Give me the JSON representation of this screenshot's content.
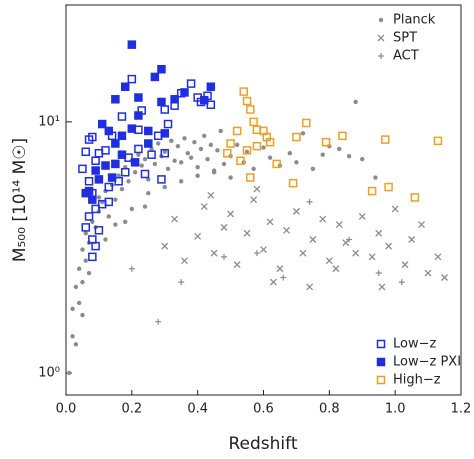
{
  "chart_data": {
    "type": "scatter",
    "xlabel": "Redshift",
    "ylabel": "M₅₀₀  [10¹⁴ M☉]",
    "xlim": [
      0,
      1.2
    ],
    "ylim": [
      0.817,
      29.2
    ],
    "log_y": true,
    "xticks": [
      {
        "value": 0,
        "label": "0.0"
      },
      0.2,
      0.4,
      0.6,
      0.8,
      {
        "value": 1,
        "label": "1.0"
      },
      1.2
    ],
    "yticks": [
      {
        "value": 1,
        "label": "10⁰"
      },
      {
        "value": 10,
        "label": "10¹"
      }
    ],
    "legends": [
      {
        "loc": "upper right",
        "series": [
          0,
          1,
          2
        ]
      },
      {
        "loc": "lower right",
        "series": [
          3,
          4,
          5
        ]
      }
    ],
    "series": [
      {
        "name": "Planck",
        "color": "#8c8c8c",
        "marker": "circle",
        "x": [
          0.01,
          0.02,
          0.02,
          0.03,
          0.03,
          0.04,
          0.04,
          0.05,
          0.05,
          0.06,
          0.06,
          0.07,
          0.08,
          0.09,
          0.1,
          0.1,
          0.11,
          0.12,
          0.13,
          0.14,
          0.15,
          0.16,
          0.17,
          0.18,
          0.19,
          0.2,
          0.21,
          0.22,
          0.23,
          0.24,
          0.25,
          0.26,
          0.27,
          0.28,
          0.29,
          0.3,
          0.31,
          0.32,
          0.33,
          0.34,
          0.35,
          0.36,
          0.37,
          0.38,
          0.39,
          0.4,
          0.41,
          0.42,
          0.43,
          0.44,
          0.45,
          0.46,
          0.47,
          0.48,
          0.5,
          0.52,
          0.54,
          0.55,
          0.57,
          0.6,
          0.62,
          0.65,
          0.68,
          0.7,
          0.72,
          0.75,
          0.78,
          0.8,
          0.83,
          0.86,
          0.88,
          0.9,
          0.94,
          0.15,
          0.2,
          0.25,
          0.3,
          0.35,
          0.4,
          0.45,
          0.5,
          0.12,
          0.18,
          0.24,
          0.05,
          0.07
        ],
        "values": [
          1.0,
          1.4,
          1.8,
          1.3,
          2.2,
          1.9,
          2.6,
          2.3,
          3.1,
          2.8,
          3.6,
          3.3,
          4.0,
          3.8,
          4.4,
          5.0,
          4.8,
          5.3,
          4.2,
          5.6,
          4.9,
          6.1,
          5.4,
          6.6,
          5.8,
          7.0,
          6.3,
          7.4,
          6.7,
          7.1,
          5.9,
          7.8,
          6.8,
          8.2,
          7.3,
          7.6,
          6.5,
          8.4,
          7.0,
          8.0,
          6.9,
          8.6,
          7.5,
          7.2,
          8.3,
          6.6,
          7.8,
          8.8,
          7.1,
          8.1,
          6.4,
          7.7,
          9.2,
          6.8,
          7.3,
          8.1,
          6.9,
          7.6,
          6.5,
          7.9,
          7.2,
          6.7,
          7.5,
          6.9,
          9.0,
          6.5,
          7.4,
          8.0,
          7.8,
          7.3,
          12.0,
          7.1,
          6.0,
          3.9,
          4.5,
          5.2,
          5.5,
          5.8,
          6.1,
          6.3,
          6.0,
          3.4,
          4.0,
          4.6,
          1.7,
          2.5
        ]
      },
      {
        "name": "SPT",
        "color": "#8c8c8c",
        "marker": "x",
        "x": [
          0.3,
          0.33,
          0.36,
          0.4,
          0.42,
          0.45,
          0.48,
          0.5,
          0.52,
          0.55,
          0.57,
          0.6,
          0.62,
          0.65,
          0.67,
          0.7,
          0.72,
          0.75,
          0.78,
          0.8,
          0.83,
          0.85,
          0.88,
          0.9,
          0.93,
          0.95,
          0.98,
          1.0,
          1.03,
          1.05,
          1.08,
          1.1,
          1.13,
          1.15,
          0.44,
          0.58,
          0.63,
          0.74,
          0.82,
          0.96
        ],
        "values": [
          3.2,
          4.1,
          2.8,
          3.5,
          4.6,
          3.0,
          3.8,
          4.3,
          2.7,
          3.6,
          4.9,
          3.1,
          4.0,
          2.6,
          3.7,
          4.4,
          3.0,
          3.4,
          4.1,
          2.8,
          3.9,
          3.3,
          3.0,
          4.2,
          2.9,
          3.6,
          3.2,
          4.5,
          2.7,
          3.4,
          3.9,
          2.5,
          2.9,
          2.4,
          5.1,
          5.4,
          2.3,
          2.2,
          2.6,
          2.2
        ]
      },
      {
        "name": "ACT",
        "color": "#8c8c8c",
        "marker": "plus",
        "x": [
          0.2,
          0.35,
          0.48,
          0.58,
          0.66,
          0.74,
          0.86,
          0.95,
          1.02,
          0.28
        ],
        "values": [
          2.6,
          2.3,
          2.9,
          3.0,
          2.4,
          4.8,
          3.4,
          2.5,
          2.3,
          1.6
        ]
      },
      {
        "name": "Low−z",
        "color": "#1f2fe0",
        "marker": "square-open",
        "x": [
          0.07,
          0.08,
          0.06,
          0.09,
          0.1,
          0.12,
          0.14,
          0.05,
          0.07,
          0.08,
          0.09,
          0.07,
          0.06,
          0.08,
          0.09,
          0.08,
          0.11,
          0.13,
          0.16,
          0.18,
          0.19,
          0.22,
          0.24,
          0.26,
          0.29,
          0.3,
          0.28,
          0.31,
          0.3,
          0.33,
          0.35,
          0.38,
          0.4,
          0.41,
          0.44,
          0.43,
          0.2,
          0.17,
          0.22,
          0.23,
          0.1,
          0.13
        ],
        "values": [
          8.5,
          8.7,
          7.6,
          7.0,
          7.5,
          7.7,
          8.8,
          6.5,
          5.8,
          5.2,
          4.5,
          4.2,
          3.8,
          3.4,
          3.2,
          2.9,
          4.7,
          4.8,
          5.8,
          6.3,
          7.2,
          7.8,
          6.2,
          7.4,
          5.9,
          7.5,
          8.8,
          9.8,
          11.2,
          11.6,
          13.0,
          14.2,
          12.5,
          12.0,
          11.7,
          12.7,
          14.8,
          10.5,
          9.3,
          11.1,
          3.7,
          5.5
        ]
      },
      {
        "name": "Low−z PXI",
        "color": "#1f2fe0",
        "marker": "square",
        "x": [
          0.2,
          0.29,
          0.27,
          0.18,
          0.15,
          0.22,
          0.29,
          0.33,
          0.36,
          0.42,
          0.44,
          0.11,
          0.13,
          0.15,
          0.17,
          0.2,
          0.22,
          0.25,
          0.09,
          0.1,
          0.12,
          0.15,
          0.17,
          0.07,
          0.08,
          0.14,
          0.21,
          0.25,
          0.06,
          0.3
        ],
        "values": [
          20.3,
          16.2,
          15.1,
          13.8,
          12.3,
          12.5,
          12.0,
          12.3,
          13.1,
          12.2,
          13.8,
          9.8,
          9.2,
          8.2,
          8.8,
          9.4,
          10.6,
          9.2,
          6.4,
          5.9,
          6.7,
          6.8,
          7.4,
          5.3,
          4.9,
          6.0,
          6.9,
          8.2,
          5.2,
          9.0
        ]
      },
      {
        "name": "High−z",
        "color": "#f0a020",
        "marker": "square-open",
        "x": [
          0.54,
          0.55,
          0.56,
          0.57,
          0.58,
          0.6,
          0.61,
          0.62,
          0.52,
          0.5,
          0.49,
          0.53,
          0.56,
          0.7,
          0.73,
          0.79,
          0.84,
          0.97,
          1.13,
          0.93,
          0.98,
          1.06,
          0.69,
          0.55,
          0.58,
          0.64
        ],
        "values": [
          13.2,
          12.1,
          11.2,
          10.0,
          9.3,
          9.2,
          8.7,
          8.3,
          9.2,
          8.2,
          7.5,
          7.0,
          6.0,
          8.7,
          9.9,
          8.3,
          8.8,
          8.5,
          8.4,
          5.3,
          5.5,
          5.0,
          5.7,
          7.7,
          8.0,
          6.8
        ]
      }
    ]
  }
}
